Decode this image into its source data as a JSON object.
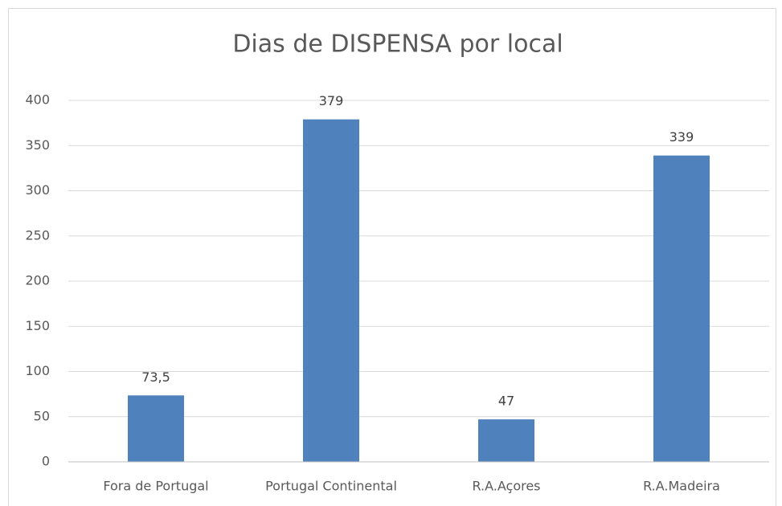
{
  "chart_data": {
    "type": "bar",
    "title": "Dias de DISPENSA por local",
    "categories": [
      "Fora de Portugal",
      "Portugal Continental",
      "R.A.Açores",
      "R.A.Madeira"
    ],
    "values": [
      73.5,
      379,
      47,
      339
    ],
    "value_labels": [
      "73,5",
      "379",
      "47",
      "339"
    ],
    "color": "#4f81bd",
    "ylim": [
      0,
      400
    ],
    "yticks": [
      0,
      50,
      100,
      150,
      200,
      250,
      300,
      350,
      400
    ],
    "grid": true
  }
}
